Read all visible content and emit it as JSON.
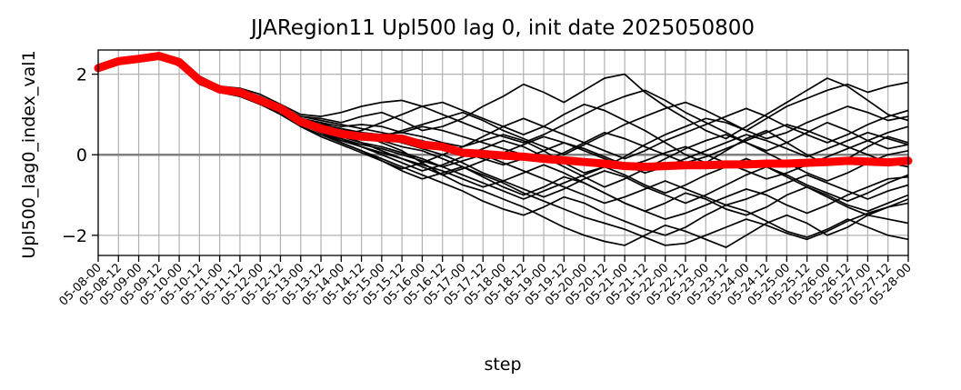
{
  "chart_data": {
    "type": "line",
    "title": "JJARegion11 Upl500 lag 0, init date 2025050800",
    "xlabel": "step",
    "ylabel": "Upl500_lag0_index_val1",
    "ylim": [
      -2.5,
      2.6
    ],
    "yticks": [
      -2,
      0,
      2
    ],
    "grid": true,
    "x": [
      "05-08-00",
      "05-08-12",
      "05-09-00",
      "05-09-12",
      "05-10-00",
      "05-10-12",
      "05-11-00",
      "05-11-12",
      "05-12-00",
      "05-12-12",
      "05-13-00",
      "05-13-12",
      "05-14-00",
      "05-14-12",
      "05-15-00",
      "05-15-12",
      "05-16-00",
      "05-16-12",
      "05-17-00",
      "05-17-12",
      "05-18-00",
      "05-18-12",
      "05-19-00",
      "05-19-12",
      "05-20-00",
      "05-20-12",
      "05-21-00",
      "05-21-12",
      "05-22-00",
      "05-22-12",
      "05-23-00",
      "05-23-12",
      "05-24-00",
      "05-24-12",
      "05-25-00",
      "05-25-12",
      "05-26-00",
      "05-26-12",
      "05-27-00",
      "05-27-12",
      "05-28-00"
    ],
    "reference_line": {
      "y": 0,
      "color": "#808080"
    },
    "series_color": "#000000",
    "mean_color": "#ff0000",
    "mean": [
      2.15,
      2.32,
      2.38,
      2.45,
      2.3,
      1.85,
      1.62,
      1.55,
      1.35,
      1.15,
      0.82,
      0.65,
      0.52,
      0.45,
      0.42,
      0.4,
      0.25,
      0.2,
      0.05,
      0.02,
      -0.02,
      -0.05,
      -0.1,
      -0.14,
      -0.18,
      -0.22,
      -0.28,
      -0.3,
      -0.28,
      -0.26,
      -0.26,
      -0.24,
      -0.24,
      -0.22,
      -0.22,
      -0.2,
      -0.18,
      -0.15,
      -0.17,
      -0.19,
      -0.15
    ],
    "members": [
      [
        2.15,
        2.32,
        2.38,
        2.45,
        2.3,
        1.9,
        1.65,
        1.62,
        1.45,
        1.2,
        0.95,
        0.9,
        0.8,
        0.95,
        1.05,
        0.85,
        0.6,
        0.7,
        0.9,
        1.2,
        1.45,
        1.75,
        1.55,
        1.3,
        1.6,
        1.9,
        2.0,
        1.55,
        1.2,
        0.9,
        0.6,
        0.4,
        0.7,
        1.0,
        1.3,
        1.6,
        1.9,
        1.7,
        1.35,
        1.0,
        0.85
      ],
      [
        2.15,
        2.32,
        2.38,
        2.45,
        2.2,
        1.8,
        1.55,
        1.5,
        1.3,
        1.1,
        0.85,
        0.7,
        0.6,
        0.5,
        0.3,
        0.1,
        -0.2,
        -0.5,
        -0.75,
        -0.9,
        -1.1,
        -1.3,
        -1.55,
        -1.8,
        -2.0,
        -2.15,
        -2.25,
        -2.0,
        -1.75,
        -1.9,
        -2.1,
        -2.3,
        -2.0,
        -1.7,
        -1.5,
        -1.7,
        -2.0,
        -1.8,
        -1.5,
        -1.6,
        -1.7
      ],
      [
        2.15,
        2.32,
        2.38,
        2.45,
        2.3,
        1.95,
        1.7,
        1.6,
        1.4,
        1.2,
        0.9,
        0.8,
        0.7,
        0.75,
        0.7,
        0.55,
        0.45,
        0.3,
        0.2,
        0.35,
        0.5,
        0.35,
        0.1,
        -0.2,
        -0.45,
        -0.3,
        -0.05,
        0.25,
        0.5,
        0.7,
        0.9,
        0.8,
        0.6,
        0.9,
        1.2,
        1.4,
        1.6,
        1.75,
        1.55,
        1.7,
        1.8
      ],
      [
        2.15,
        2.32,
        2.38,
        2.45,
        2.25,
        1.8,
        1.6,
        1.5,
        1.35,
        1.15,
        0.8,
        0.55,
        0.3,
        0.1,
        -0.15,
        -0.4,
        -0.6,
        -0.45,
        -0.3,
        -0.55,
        -0.8,
        -1.0,
        -0.8,
        -0.55,
        -0.7,
        -0.95,
        -1.2,
        -1.4,
        -1.2,
        -0.95,
        -1.1,
        -1.35,
        -1.5,
        -1.3,
        -1.0,
        -0.8,
        -1.0,
        -1.25,
        -1.4,
        -1.2,
        -1.0
      ],
      [
        2.15,
        2.32,
        2.38,
        2.45,
        2.35,
        1.9,
        1.6,
        1.55,
        1.4,
        1.2,
        0.85,
        0.7,
        0.5,
        0.6,
        0.8,
        1.0,
        1.2,
        1.3,
        1.1,
        0.9,
        0.7,
        0.5,
        0.7,
        1.0,
        1.25,
        1.1,
        0.85,
        0.6,
        0.3,
        0.0,
        -0.2,
        0.1,
        0.4,
        0.6,
        0.3,
        0.0,
        -0.25,
        -0.1,
        0.2,
        0.45,
        0.3
      ],
      [
        2.15,
        2.32,
        2.38,
        2.45,
        2.2,
        1.75,
        1.55,
        1.45,
        1.25,
        1.05,
        0.7,
        0.5,
        0.3,
        0.1,
        -0.1,
        -0.3,
        -0.5,
        -0.7,
        -0.9,
        -1.15,
        -1.35,
        -1.5,
        -1.3,
        -1.05,
        -1.2,
        -1.45,
        -1.65,
        -1.85,
        -2.0,
        -1.8,
        -1.5,
        -1.25,
        -1.4,
        -1.65,
        -1.9,
        -2.05,
        -1.85,
        -1.6,
        -1.8,
        -2.0,
        -2.1
      ],
      [
        2.15,
        2.32,
        2.38,
        2.45,
        2.3,
        1.85,
        1.62,
        1.58,
        1.38,
        1.15,
        0.85,
        0.65,
        0.55,
        0.4,
        0.45,
        0.6,
        0.75,
        0.9,
        1.05,
        0.85,
        0.6,
        0.4,
        0.2,
        0.0,
        0.25,
        0.5,
        0.75,
        0.95,
        1.15,
        1.3,
        1.1,
        0.85,
        0.6,
        0.4,
        0.55,
        0.8,
        1.0,
        1.2,
        1.05,
        0.85,
        0.95
      ],
      [
        2.15,
        2.32,
        2.38,
        2.45,
        2.3,
        1.9,
        1.65,
        1.55,
        1.35,
        1.1,
        0.8,
        0.6,
        0.4,
        0.2,
        0.0,
        -0.2,
        -0.4,
        -0.25,
        -0.05,
        0.15,
        0.35,
        0.2,
        -0.05,
        -0.3,
        -0.55,
        -0.8,
        -0.6,
        -0.35,
        -0.1,
        0.15,
        0.35,
        0.5,
        0.3,
        0.05,
        -0.2,
        -0.45,
        -0.65,
        -0.45,
        -0.2,
        0.0,
        0.1
      ],
      [
        2.15,
        2.32,
        2.38,
        2.45,
        2.25,
        1.85,
        1.6,
        1.5,
        1.3,
        1.1,
        0.9,
        0.75,
        0.65,
        0.5,
        0.35,
        0.2,
        0.1,
        -0.1,
        -0.3,
        -0.5,
        -0.7,
        -0.95,
        -1.15,
        -1.35,
        -1.55,
        -1.7,
        -1.85,
        -2.05,
        -2.25,
        -2.2,
        -2.0,
        -1.8,
        -1.6,
        -1.75,
        -1.95,
        -2.1,
        -1.9,
        -1.65,
        -1.45,
        -1.3,
        -1.2
      ],
      [
        2.15,
        2.32,
        2.38,
        2.45,
        2.3,
        1.9,
        1.7,
        1.65,
        1.5,
        1.25,
        1.0,
        0.95,
        1.05,
        1.2,
        1.3,
        1.35,
        1.2,
        1.0,
        0.8,
        0.6,
        0.45,
        0.3,
        0.5,
        0.75,
        1.0,
        1.25,
        1.45,
        1.6,
        1.35,
        1.05,
        0.8,
        0.55,
        0.3,
        0.1,
        0.3,
        0.55,
        0.8,
        0.6,
        0.35,
        0.15,
        0.25
      ],
      [
        2.15,
        2.32,
        2.38,
        2.45,
        2.2,
        1.8,
        1.55,
        1.45,
        1.25,
        1.0,
        0.7,
        0.45,
        0.25,
        0.05,
        -0.15,
        -0.35,
        -0.2,
        0.0,
        -0.2,
        -0.45,
        -0.65,
        -0.85,
        -1.05,
        -0.85,
        -0.6,
        -0.4,
        -0.55,
        -0.8,
        -1.0,
        -1.2,
        -1.0,
        -0.75,
        -0.5,
        -0.3,
        -0.5,
        -0.75,
        -0.95,
        -1.15,
        -0.95,
        -0.7,
        -0.5
      ],
      [
        2.15,
        2.32,
        2.38,
        2.45,
        2.3,
        1.85,
        1.6,
        1.55,
        1.35,
        1.15,
        0.9,
        0.7,
        0.5,
        0.3,
        0.1,
        -0.1,
        -0.3,
        -0.5,
        -0.35,
        -0.15,
        0.05,
        0.25,
        0.45,
        0.3,
        0.1,
        -0.1,
        -0.3,
        -0.15,
        0.05,
        0.2,
        0.0,
        -0.2,
        -0.4,
        -0.6,
        -0.45,
        -0.25,
        -0.05,
        0.15,
        0.35,
        0.55,
        0.7
      ],
      [
        2.15,
        2.32,
        2.38,
        2.45,
        2.3,
        1.9,
        1.6,
        1.5,
        1.3,
        1.05,
        0.75,
        0.55,
        0.35,
        0.2,
        0.05,
        -0.1,
        -0.25,
        -0.4,
        -0.6,
        -0.8,
        -0.65,
        -0.45,
        -0.25,
        -0.45,
        -0.7,
        -0.95,
        -1.2,
        -1.4,
        -1.6,
        -1.45,
        -1.25,
        -1.05,
        -0.85,
        -1.0,
        -1.25,
        -1.45,
        -1.25,
        -1.0,
        -0.8,
        -0.6,
        -0.55
      ],
      [
        2.15,
        2.32,
        2.38,
        2.45,
        2.25,
        1.85,
        1.6,
        1.55,
        1.35,
        1.1,
        0.85,
        0.75,
        0.65,
        0.55,
        0.5,
        0.55,
        0.7,
        0.6,
        0.45,
        0.3,
        0.15,
        0.0,
        -0.15,
        0.05,
        0.3,
        0.55,
        0.4,
        0.2,
        0.0,
        -0.2,
        -0.05,
        0.15,
        0.35,
        0.55,
        0.75,
        0.6,
        0.4,
        0.2,
        0.0,
        -0.2,
        -0.3
      ],
      [
        2.15,
        2.32,
        2.38,
        2.45,
        2.3,
        1.9,
        1.65,
        1.55,
        1.4,
        1.15,
        0.85,
        0.6,
        0.45,
        0.3,
        0.2,
        0.05,
        -0.1,
        -0.3,
        -0.5,
        -0.7,
        -0.9,
        -1.1,
        -0.9,
        -0.7,
        -0.5,
        -0.3,
        -0.5,
        -0.75,
        -0.95,
        -0.75,
        -0.5,
        -0.3,
        -0.1,
        -0.3,
        -0.55,
        -0.8,
        -1.05,
        -1.3,
        -1.5,
        -1.3,
        -1.1
      ],
      [
        2.15,
        2.32,
        2.38,
        2.45,
        2.3,
        1.85,
        1.6,
        1.5,
        1.35,
        1.15,
        0.9,
        0.8,
        0.6,
        0.45,
        0.4,
        0.3,
        0.15,
        0.0,
        0.2,
        0.45,
        0.7,
        0.9,
        0.7,
        0.5,
        0.3,
        0.1,
        -0.1,
        0.1,
        0.35,
        0.55,
        0.75,
        0.95,
        1.15,
        0.95,
        0.7,
        0.5,
        0.3,
        0.5,
        0.75,
        0.95,
        1.1
      ],
      [
        2.15,
        2.32,
        2.38,
        2.45,
        2.2,
        1.8,
        1.55,
        1.5,
        1.3,
        1.05,
        0.75,
        0.55,
        0.4,
        0.25,
        0.15,
        0.0,
        -0.15,
        -0.3,
        -0.15,
        0.0,
        -0.2,
        -0.4,
        -0.6,
        -0.8,
        -1.0,
        -1.2,
        -1.05,
        -0.85,
        -0.65,
        -0.85,
        -1.05,
        -1.25,
        -1.1,
        -0.9,
        -0.7,
        -0.5,
        -0.7,
        -0.9,
        -1.1,
        -0.9,
        -0.75
      ],
      [
        2.15,
        2.32,
        2.38,
        2.45,
        2.3,
        1.9,
        1.65,
        1.6,
        1.4,
        1.2,
        0.95,
        0.85,
        0.75,
        0.65,
        0.55,
        0.45,
        0.35,
        0.2,
        0.05,
        -0.1,
        -0.25,
        -0.1,
        0.1,
        0.3,
        0.15,
        -0.05,
        -0.25,
        -0.45,
        -0.3,
        -0.1,
        0.1,
        0.3,
        0.5,
        0.35,
        0.15,
        -0.05,
        0.15,
        0.35,
        0.55,
        0.4,
        0.25
      ]
    ]
  }
}
